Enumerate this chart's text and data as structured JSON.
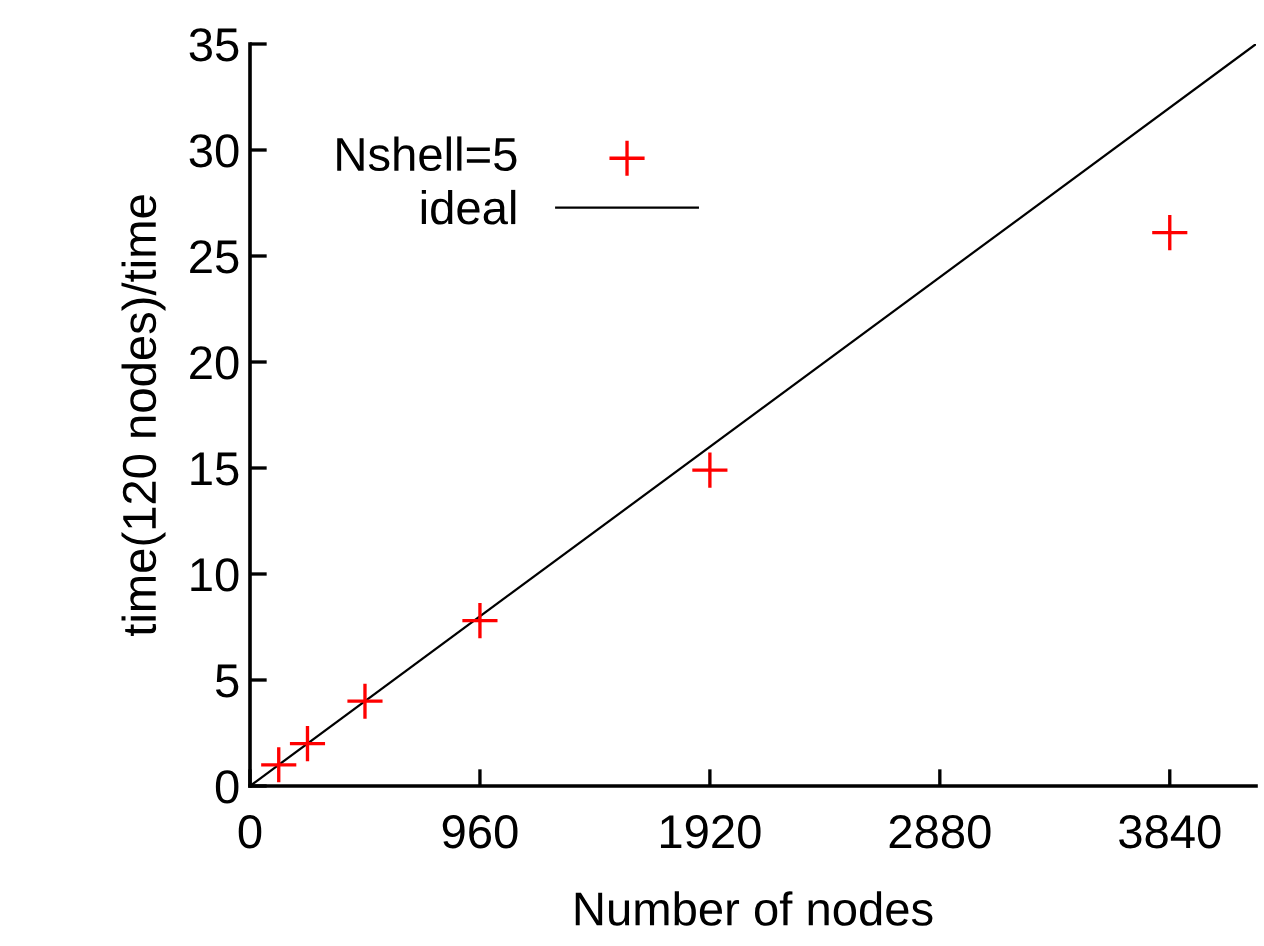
{
  "chart_data": {
    "type": "scatter",
    "xlabel": "Number of nodes",
    "ylabel": "time(120 nodes)/time",
    "xlim": [
      0,
      4200
    ],
    "xticks": [
      0,
      960,
      1920,
      2880,
      3840
    ],
    "ylim": [
      0,
      35
    ],
    "yticks": [
      0,
      5,
      10,
      15,
      20,
      25,
      30,
      35
    ],
    "legend": "top left",
    "grid": false,
    "series": [
      {
        "name": "Nshell=5",
        "marker": "cross",
        "color": "#ff0000",
        "x": [
          120,
          240,
          480,
          960,
          1920,
          3840
        ],
        "values": [
          1,
          2,
          4,
          7.8,
          14.9,
          26.1
        ]
      },
      {
        "name": "ideal",
        "type": "line",
        "marker": "none",
        "line_style": "solid",
        "color": "#000000",
        "x": [
          0,
          4200
        ],
        "values": [
          0,
          35
        ]
      }
    ]
  }
}
